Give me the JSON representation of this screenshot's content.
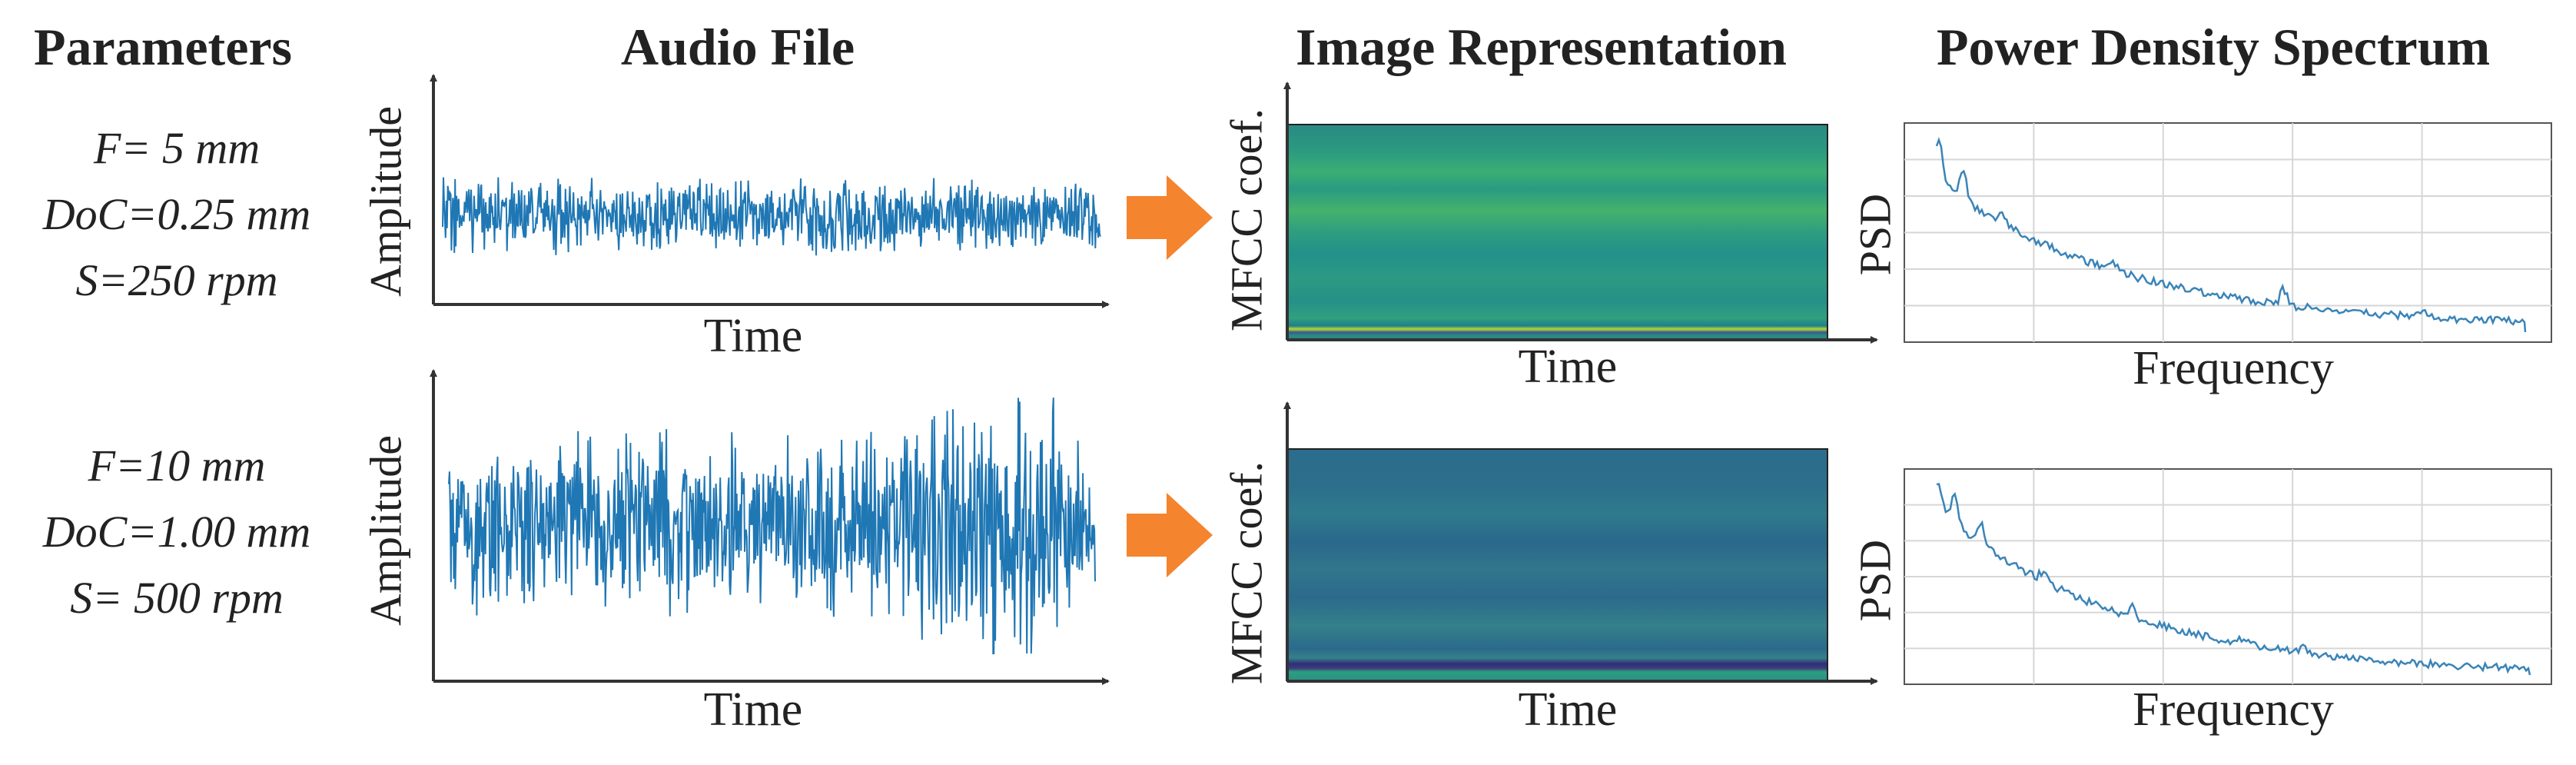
{
  "headers": {
    "parameters": "Parameters",
    "audio": "Audio File",
    "image": "Image Representation",
    "psd": "Power Density Spectrum"
  },
  "rows": [
    {
      "params": [
        "F= 5 mm",
        "DoC=0.25 mm",
        "S=250 rpm"
      ],
      "audio_ylabel": "Amplitude",
      "audio_xlabel": "Time",
      "mfcc_ylabel": "MFCC coef.",
      "mfcc_xlabel": "Time",
      "psd_ylabel": "PSD",
      "psd_xlabel": "Frequency"
    },
    {
      "params": [
        "F=10 mm",
        "DoC=1.00 mm",
        "S= 500 rpm"
      ],
      "audio_ylabel": "Amplitude",
      "audio_xlabel": "Time",
      "mfcc_ylabel": "MFCC coef.",
      "mfcc_xlabel": "Time",
      "psd_ylabel": "PSD",
      "psd_xlabel": "Frequency"
    }
  ],
  "colors": {
    "signal": "#1f77b4",
    "psd_line": "#3a84b8",
    "arrow": "#f4842e",
    "axis": "#333333",
    "grid": "#d6d6d6"
  }
}
